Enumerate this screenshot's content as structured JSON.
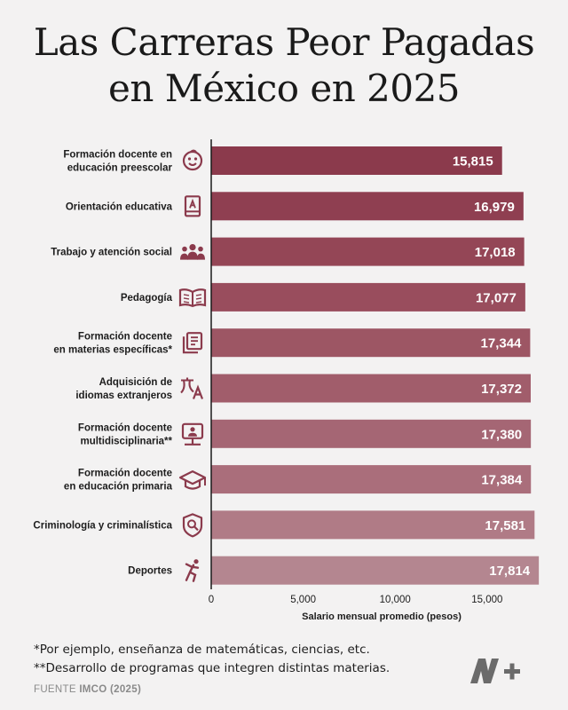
{
  "title_line1": "Las Carreras Peor Pagadas",
  "title_line2": "en México en 2025",
  "chart_data": {
    "type": "bar",
    "orientation": "horizontal",
    "categories": [
      [
        "Formación docente en",
        "educación preescolar"
      ],
      [
        "Orientación educativa"
      ],
      [
        "Trabajo y atención social"
      ],
      [
        "Pedagogía"
      ],
      [
        "Formación docente",
        "en materias específicas*"
      ],
      [
        "Adquisición de",
        "idiomas extranjeros"
      ],
      [
        "Formación docente",
        "multidisciplinaria**"
      ],
      [
        "Formación docente",
        "en educación primaria"
      ],
      [
        "Criminología y criminalística"
      ],
      [
        "Deportes"
      ]
    ],
    "icons": [
      "baby-face-icon",
      "book-icon",
      "people-icon",
      "open-book-icon",
      "articles-icon",
      "translate-icon",
      "teacher-screen-icon",
      "graduation-cap-icon",
      "shield-search-icon",
      "athlete-icon"
    ],
    "values": [
      15815,
      16979,
      17018,
      17077,
      17344,
      17372,
      17380,
      17384,
      17581,
      17814
    ],
    "value_labels": [
      "15,815",
      "16,979",
      "17,018",
      "17,077",
      "17,344",
      "17,372",
      "17,380",
      "17,384",
      "17,581",
      "17,814"
    ],
    "bar_colors": [
      "#8b3a4c",
      "#8f3f51",
      "#944656",
      "#994d5d",
      "#9d5664",
      "#a15d6b",
      "#a56674",
      "#aa6e7b",
      "#b07b86",
      "#b48690"
    ],
    "xticks": [
      0,
      5000,
      10000,
      15000
    ],
    "xtick_labels": [
      "0",
      "5,000",
      "10,000",
      "15,000"
    ],
    "xlim": [
      0,
      18000
    ],
    "xlabel": "Salario mensual promedio (pesos)",
    "title": "Las Carreras Peor Pagadas en México en 2025",
    "grid": false
  },
  "notes": [
    "*Por ejemplo, enseñanza de matemáticas, ciencias, etc.",
    "**Desarrollo de programas que integren distintas materias."
  ],
  "source_prefix": "FUENTE",
  "source_name": "IMCO (2025)",
  "colors": {
    "icon": "#8b3a4c",
    "background": "#f3f2f2",
    "axis": "#1a1a1a"
  }
}
